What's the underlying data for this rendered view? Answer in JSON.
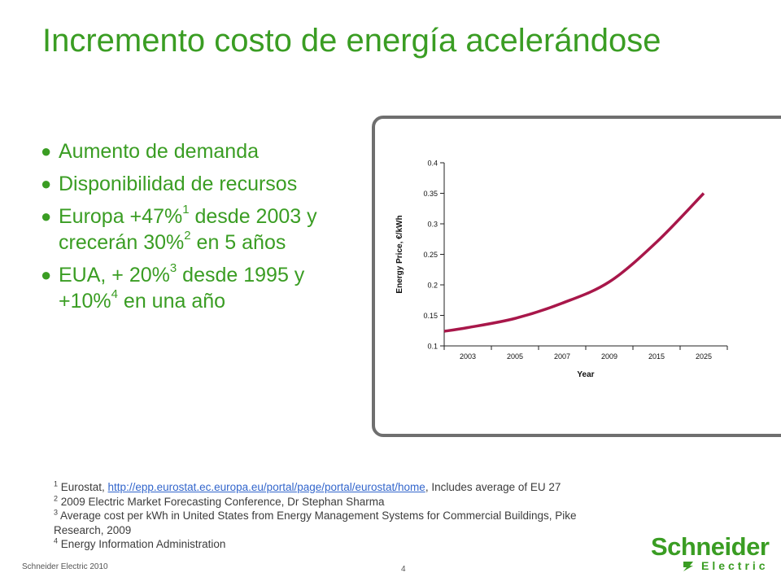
{
  "slide": {
    "title": "Incremento costo de energía acelerándose",
    "bullets": [
      {
        "parts": [
          {
            "t": "Aumento de demanda"
          }
        ]
      },
      {
        "parts": [
          {
            "t": "Disponibilidad de recursos"
          }
        ]
      },
      {
        "parts": [
          {
            "t": "Europa +47%"
          },
          {
            "sup": "1"
          },
          {
            "t": " desde 2003 y crecerán 30%"
          },
          {
            "sup": "2"
          },
          {
            "t": " en 5 años"
          }
        ]
      },
      {
        "parts": [
          {
            "t": "EUA, + 20%"
          },
          {
            "sup": "3"
          },
          {
            "t": " desde 1995 y +10%"
          },
          {
            "sup": "4"
          },
          {
            "t": " en una año"
          }
        ]
      }
    ],
    "footnotes": {
      "n1_sup": "1",
      "n1_pre": " Eurostat, ",
      "n1_link": "http://epp.eurostat.ec.europa.eu/portal/page/portal/eurostat/home",
      "n1_post": ", Includes average of EU 27",
      "n2_sup": "2",
      "n2_text": " 2009 Electric Market Forecasting Conference, Dr Stephan Sharma",
      "n3_sup": "3",
      "n3_text": " Average cost per kWh in United States from Energy Management Systems for Commercial Buildings, Pike Research, 2009",
      "n4_sup": "4",
      "n4_text": " Energy Information Administration"
    },
    "footer_left": "Schneider Electric 2010",
    "page_number": "4",
    "logo": {
      "name": "Schneider",
      "sub": "Electric",
      "color": "#3a9d23"
    }
  },
  "colors": {
    "title": "#3a9d23",
    "bullets": "#3a9d23",
    "line": "#a8174a",
    "frame": "#6f6f6f"
  },
  "chart_data": {
    "type": "line",
    "categories": [
      "2003",
      "2005",
      "2007",
      "2009",
      "2015",
      "2025"
    ],
    "series": [
      {
        "values": [
          0.13,
          0.145,
          0.17,
          0.205,
          0.27,
          0.35
        ]
      }
    ],
    "xlabel": "Year",
    "ylabel": "Energy Price, €/kWh",
    "ylim": [
      0.1,
      0.4
    ],
    "yticks": [
      "0.1",
      "0.15",
      "0.2",
      "0.25",
      "0.3",
      "0.35",
      "0.4"
    ],
    "start_value": 0.124,
    "grid": false,
    "legend": "none"
  }
}
